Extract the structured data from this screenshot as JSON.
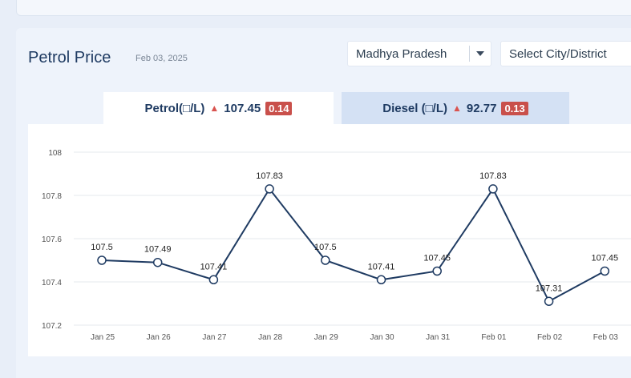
{
  "header": {
    "title": "Petrol Price",
    "date": "Feb 03, 2025"
  },
  "filters": {
    "state": "Madhya Pradesh",
    "city_placeholder": "Select City/District"
  },
  "tabs": [
    {
      "label": "Petrol(□/L)",
      "price": "107.45",
      "change": "0.14",
      "direction": "up"
    },
    {
      "label": "Diesel (□/L)",
      "price": "92.77",
      "change": "0.13",
      "direction": "up"
    }
  ],
  "colors": {
    "line": "#1f3b62",
    "badge": "#c9504b",
    "grid": "#e6e9ee"
  },
  "chart_data": {
    "type": "line",
    "categories": [
      "Jan 25",
      "Jan 26",
      "Jan 27",
      "Jan 28",
      "Jan 29",
      "Jan 30",
      "Jan 31",
      "Feb 01",
      "Feb 02",
      "Feb 03"
    ],
    "values": [
      107.5,
      107.49,
      107.41,
      107.83,
      107.5,
      107.41,
      107.45,
      107.83,
      107.31,
      107.45
    ],
    "value_labels": [
      "107.5",
      "107.49",
      "107.41",
      "107.83",
      "107.5",
      "107.41",
      "107.45",
      "107.83",
      "107.31",
      "107.45"
    ],
    "yticks": [
      "107.2",
      "107.4",
      "107.6",
      "107.8",
      "108"
    ],
    "ylim": [
      107.2,
      108
    ],
    "grid": true
  }
}
